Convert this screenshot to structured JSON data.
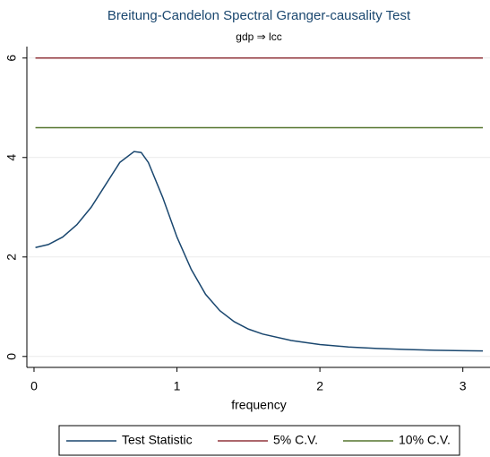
{
  "chart_data": {
    "type": "line",
    "title": "Breitung-Candelon Spectral Granger-causality Test",
    "subtitle": "gdp ⇒ lcc",
    "x_label": "frequency",
    "x": [
      0.01,
      0.1,
      0.2,
      0.3,
      0.4,
      0.5,
      0.6,
      0.7,
      0.75,
      0.8,
      0.9,
      1.0,
      1.1,
      1.2,
      1.3,
      1.4,
      1.5,
      1.6,
      1.8,
      2.0,
      2.2,
      2.4,
      2.6,
      2.8,
      3.0,
      3.14
    ],
    "series": [
      {
        "name": "Test Statistic",
        "color": "#1a476f",
        "values": [
          2.19,
          2.25,
          2.4,
          2.65,
          3.0,
          3.45,
          3.9,
          4.12,
          4.1,
          3.9,
          3.2,
          2.4,
          1.75,
          1.25,
          0.92,
          0.7,
          0.55,
          0.45,
          0.32,
          0.24,
          0.19,
          0.16,
          0.14,
          0.125,
          0.115,
          0.11
        ]
      },
      {
        "name": "5% C.V.",
        "color": "#90353b",
        "values": [
          6,
          6,
          6,
          6,
          6,
          6,
          6,
          6,
          6,
          6,
          6,
          6,
          6,
          6,
          6,
          6,
          6,
          6,
          6,
          6,
          6,
          6,
          6,
          6,
          6,
          6
        ]
      },
      {
        "name": "10% C.V.",
        "color": "#55752f",
        "values": [
          4.6,
          4.6,
          4.6,
          4.6,
          4.6,
          4.6,
          4.6,
          4.6,
          4.6,
          4.6,
          4.6,
          4.6,
          4.6,
          4.6,
          4.6,
          4.6,
          4.6,
          4.6,
          4.6,
          4.6,
          4.6,
          4.6,
          4.6,
          4.6,
          4.6,
          4.6
        ]
      }
    ],
    "xlim": [
      -0.05,
      3.19
    ],
    "xticks": [
      0,
      1,
      2,
      3
    ],
    "ylim": [
      -0.22,
      6.23
    ],
    "yticks": [
      0,
      2,
      4,
      6
    ],
    "grid": true,
    "legend": "bottom"
  }
}
